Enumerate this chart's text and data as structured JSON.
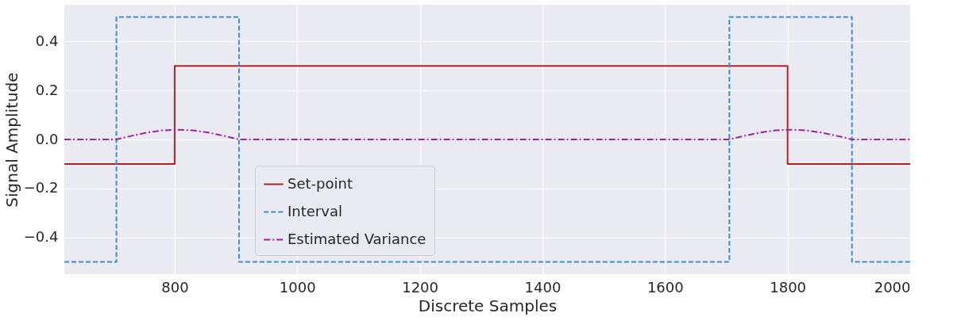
{
  "chart_data": {
    "type": "line",
    "xlabel": "Discrete Samples",
    "ylabel": "Signal Amplitude",
    "xlim": [
      620,
      2000
    ],
    "xticks": [
      800,
      1000,
      1200,
      1400,
      1600,
      1800,
      2000
    ],
    "ylim": [
      -0.55,
      0.55
    ],
    "yticks": [
      {
        "value": -0.4,
        "label": "−0.4"
      },
      {
        "value": -0.2,
        "label": "−0.2"
      },
      {
        "value": 0,
        "label": "0.0"
      },
      0.2,
      0.4
    ],
    "grid": true,
    "legend": "bottom left",
    "marker": "none",
    "series": [
      {
        "name": "Set-point",
        "color": "#b22222",
        "line_style": "solid",
        "x": [
          620,
          800,
          800,
          1800,
          1800,
          2000
        ],
        "values": [
          -0.1,
          -0.1,
          0.3,
          0.3,
          -0.1,
          -0.1
        ]
      },
      {
        "name": "Interval",
        "color": "#3a8fd0",
        "line_style": "dashed",
        "x": [
          620,
          705,
          705,
          905,
          905,
          1705,
          1705,
          1905,
          1905,
          2000
        ],
        "values": [
          -0.5,
          -0.5,
          0.5,
          0.5,
          -0.5,
          -0.5,
          0.5,
          0.5,
          -0.5,
          -0.5
        ]
      },
      {
        "name": "Estimated Variance",
        "color": "#a020a0",
        "line_style": "dashdot",
        "x": [
          620,
          705,
          730,
          755,
          780,
          805,
          830,
          855,
          880,
          905,
          1705,
          1730,
          1755,
          1780,
          1805,
          1830,
          1855,
          1880,
          1905,
          2000
        ],
        "values": [
          0,
          0,
          0.015,
          0.028,
          0.037,
          0.04,
          0.037,
          0.028,
          0.015,
          0,
          0,
          0.015,
          0.028,
          0.037,
          0.04,
          0.037,
          0.028,
          0.015,
          0,
          0
        ]
      }
    ]
  }
}
